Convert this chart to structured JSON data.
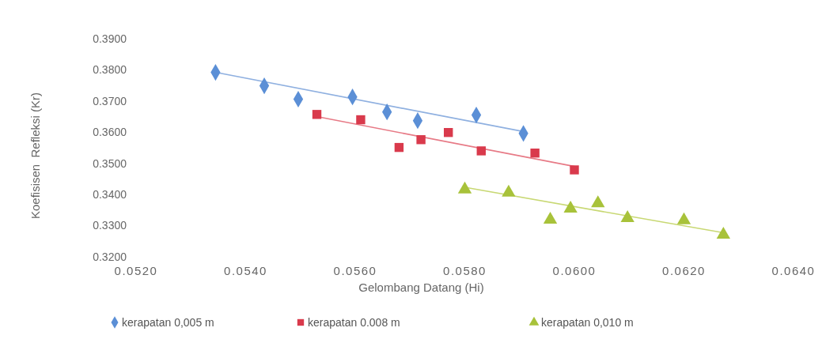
{
  "chart_data": {
    "type": "scatter",
    "xlabel": "Gelombang Datang (Hi)",
    "ylabel": "Koefisisen  Refleksi (Kr)",
    "xlim": [
      0.052,
      0.064
    ],
    "ylim": [
      0.32,
      0.39
    ],
    "xticks": [
      {
        "value": 0.052,
        "label": "0.0520"
      },
      {
        "value": 0.054,
        "label": "0.0540"
      },
      {
        "value": 0.056,
        "label": "0.0560"
      },
      {
        "value": 0.058,
        "label": "0.0580"
      },
      {
        "value": 0.06,
        "label": "0.0600"
      },
      {
        "value": 0.062,
        "label": "0.0620"
      },
      {
        "value": 0.064,
        "label": "0.0640"
      }
    ],
    "yticks": [
      {
        "value": 0.32,
        "label": "0.3200"
      },
      {
        "value": 0.33,
        "label": "0.3300"
      },
      {
        "value": 0.34,
        "label": "0.3400"
      },
      {
        "value": 0.35,
        "label": "0.3500"
      },
      {
        "value": 0.36,
        "label": "0.3600"
      },
      {
        "value": 0.37,
        "label": "0.3700"
      },
      {
        "value": 0.38,
        "label": "0.3800"
      },
      {
        "value": 0.39,
        "label": "0.3900"
      }
    ],
    "legend": "bottom",
    "series": [
      {
        "type": "line",
        "color": "#8fb0e0",
        "marker": "none",
        "x": [
          0.05345,
          0.0591
        ],
        "values": [
          0.3792,
          0.3601
        ]
      },
      {
        "type": "line",
        "color": "#e77a86",
        "marker": "none",
        "x": [
          0.0553,
          0.06
        ],
        "values": [
          0.365,
          0.349
        ]
      },
      {
        "type": "line",
        "color": "#c8d873",
        "marker": "none",
        "x": [
          0.058,
          0.0627
        ],
        "values": [
          0.3423,
          0.3278
        ]
      },
      {
        "name": "kerapatan 0,005 m",
        "color": "#5b8fd6",
        "marker": "diamond",
        "x": [
          0.05345,
          0.05434,
          0.05496,
          0.05595,
          0.05658,
          0.05714,
          0.05821,
          0.05907
        ],
        "values": [
          0.3792,
          0.3749,
          0.3706,
          0.3713,
          0.3665,
          0.3637,
          0.3655,
          0.3596
        ]
      },
      {
        "name": "kerapatan 0.008 m",
        "color": "#d93a4c",
        "marker": "square",
        "x": [
          0.0553,
          0.0561,
          0.0568,
          0.0572,
          0.0577,
          0.0583,
          0.05928,
          0.06
        ],
        "values": [
          0.3657,
          0.364,
          0.3551,
          0.3576,
          0.3599,
          0.354,
          0.3533,
          0.3479
        ]
      },
      {
        "name": "kerapatan 0,010 m",
        "color": "#a8c23a",
        "marker": "triangle",
        "x": [
          0.058,
          0.0588,
          0.05956,
          0.05993,
          0.06043,
          0.06097,
          0.062,
          0.06272
        ],
        "values": [
          0.3416,
          0.3406,
          0.3319,
          0.3355,
          0.3372,
          0.3324,
          0.3317,
          0.3271
        ]
      }
    ]
  }
}
